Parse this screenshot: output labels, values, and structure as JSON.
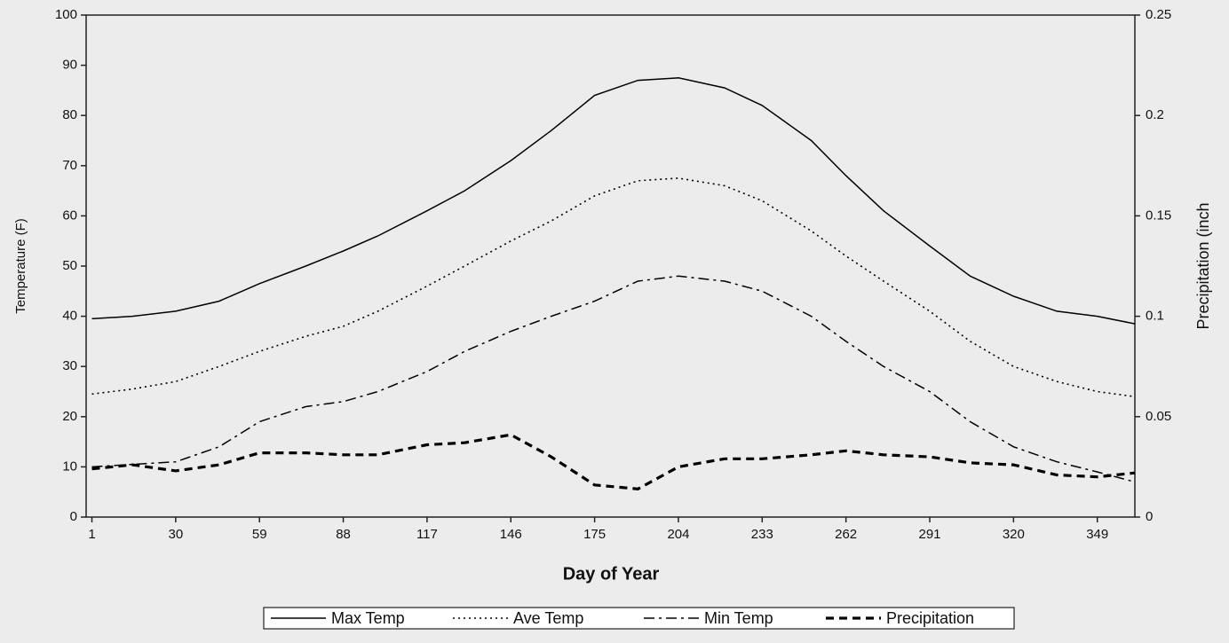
{
  "chart_data": {
    "type": "line",
    "xlabel": "Day of Year",
    "ylabel": "Temperature (F)",
    "y2label": "Precipitation (inch",
    "x": [
      1,
      15,
      30,
      45,
      59,
      75,
      88,
      100,
      117,
      130,
      146,
      160,
      175,
      190,
      204,
      220,
      233,
      250,
      262,
      275,
      291,
      305,
      320,
      335,
      349,
      362
    ],
    "xlim": [
      -1,
      362
    ],
    "xticks": [
      1,
      30,
      59,
      88,
      117,
      146,
      175,
      204,
      233,
      262,
      291,
      320,
      349
    ],
    "ylim": [
      0,
      100
    ],
    "yticks": [
      0,
      10,
      20,
      30,
      40,
      50,
      60,
      70,
      80,
      90,
      100
    ],
    "y2lim": [
      0,
      0.25
    ],
    "y2ticks": [
      0,
      0.05,
      0.1,
      0.15,
      0.2,
      0.25
    ],
    "legend": "bottom",
    "series": [
      {
        "name": "Max Temp",
        "color": "#000000",
        "style": "solid",
        "values": [
          39.5,
          40,
          41,
          43,
          46.5,
          50,
          53,
          56,
          61,
          65,
          71,
          77,
          84,
          87,
          87.5,
          85.5,
          82,
          75,
          68,
          61,
          54,
          48,
          44,
          41,
          40,
          38.5
        ]
      },
      {
        "name": "Ave Temp",
        "color": "#000000",
        "style": "dotted",
        "values": [
          24.5,
          25.5,
          27,
          30,
          33,
          36,
          38,
          41,
          46,
          50,
          55,
          59,
          64,
          67,
          67.5,
          66,
          63,
          57,
          52,
          47,
          41,
          35,
          30,
          27,
          25,
          24
        ]
      },
      {
        "name": "Min Temp",
        "color": "#000000",
        "style": "dashdot",
        "values": [
          10,
          10.5,
          11,
          14,
          19,
          22,
          23,
          25,
          29,
          33,
          37,
          40,
          43,
          47,
          48,
          47,
          45,
          40,
          35,
          30,
          25,
          19,
          14,
          11,
          9,
          7
        ]
      },
      {
        "name": "Precipitation",
        "color": "#000000",
        "style": "dashed",
        "axis": "y2",
        "values": [
          0.024,
          0.026,
          0.023,
          0.026,
          0.032,
          0.032,
          0.031,
          0.031,
          0.036,
          0.037,
          0.041,
          0.03,
          0.016,
          0.014,
          0.025,
          0.029,
          0.029,
          0.031,
          0.033,
          0.031,
          0.03,
          0.027,
          0.026,
          0.021,
          0.02,
          0.022
        ]
      }
    ]
  }
}
